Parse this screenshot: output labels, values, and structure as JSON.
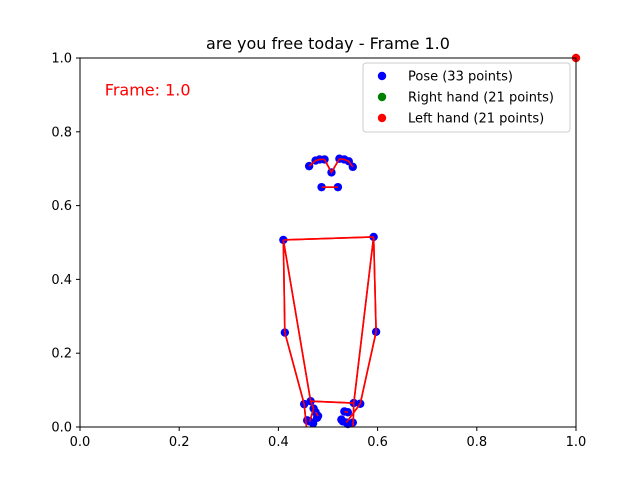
{
  "chart_data": {
    "type": "scatter",
    "title": "are you free today - Frame 1.0",
    "xlabel": "",
    "ylabel": "",
    "xlim": [
      0,
      1
    ],
    "ylim": [
      0,
      1
    ],
    "x_ticks": [
      "0.0",
      "0.2",
      "0.4",
      "0.6",
      "0.8",
      "1.0"
    ],
    "y_ticks": [
      "0.0",
      "0.2",
      "0.4",
      "0.6",
      "0.8",
      "1.0"
    ],
    "x_tick_values": [
      0,
      0.2,
      0.4,
      0.6,
      0.8,
      1.0
    ],
    "y_tick_values": [
      0,
      0.2,
      0.4,
      0.6,
      0.8,
      1.0
    ],
    "grid": false,
    "legend_position": "top-right",
    "annotation": {
      "text": "Frame: 1.0",
      "x": 0.05,
      "y": 0.915,
      "color": "#ff0000"
    },
    "series": [
      {
        "name": "Pose (33 points)",
        "color": "#0000ff",
        "points": [
          [
            0.507,
            0.69
          ],
          [
            0.493,
            0.725
          ],
          [
            0.483,
            0.725
          ],
          [
            0.475,
            0.722
          ],
          [
            0.523,
            0.727
          ],
          [
            0.533,
            0.725
          ],
          [
            0.542,
            0.72
          ],
          [
            0.462,
            0.707
          ],
          [
            0.55,
            0.705
          ],
          [
            0.487,
            0.65
          ],
          [
            0.52,
            0.65
          ],
          [
            0.41,
            0.507
          ],
          [
            0.592,
            0.515
          ],
          [
            0.413,
            0.256
          ],
          [
            0.597,
            0.258
          ],
          [
            0.465,
            0.07
          ],
          [
            0.552,
            0.065
          ],
          [
            0.452,
            0.062
          ],
          [
            0.565,
            0.063
          ],
          [
            0.471,
            0.05
          ],
          [
            0.533,
            0.042
          ],
          [
            0.475,
            0.04
          ],
          [
            0.527,
            0.02
          ],
          [
            0.48,
            0.03
          ],
          [
            0.54,
            0.04
          ],
          [
            0.463,
            0.015
          ],
          [
            0.537,
            0.012
          ],
          [
            0.478,
            0.025
          ],
          [
            0.53,
            0.015
          ],
          [
            0.47,
            0.01
          ],
          [
            0.54,
            0.008
          ],
          [
            0.458,
            0.018
          ],
          [
            0.55,
            0.012
          ]
        ]
      },
      {
        "name": "Right hand (21 points)",
        "color": "#008000",
        "points": []
      },
      {
        "name": "Left hand (21 points)",
        "color": "#ff0000",
        "points": [
          [
            1.0,
            1.0
          ]
        ]
      }
    ],
    "lines_color": "#ff0000",
    "lines": [
      [
        [
          0.493,
          0.725
        ],
        [
          0.483,
          0.725
        ],
        [
          0.475,
          0.722
        ],
        [
          0.462,
          0.707
        ]
      ],
      [
        [
          0.523,
          0.727
        ],
        [
          0.533,
          0.725
        ],
        [
          0.542,
          0.72
        ],
        [
          0.55,
          0.705
        ]
      ],
      [
        [
          0.493,
          0.725
        ],
        [
          0.507,
          0.69
        ],
        [
          0.523,
          0.727
        ]
      ],
      [
        [
          0.487,
          0.65
        ],
        [
          0.52,
          0.65
        ]
      ],
      [
        [
          0.41,
          0.507
        ],
        [
          0.592,
          0.515
        ]
      ],
      [
        [
          0.41,
          0.507
        ],
        [
          0.413,
          0.256
        ],
        [
          0.452,
          0.062
        ],
        [
          0.458,
          -0.02
        ]
      ],
      [
        [
          0.41,
          0.507
        ],
        [
          0.465,
          0.07
        ],
        [
          0.471,
          0.05
        ],
        [
          0.463,
          0.015
        ]
      ],
      [
        [
          0.592,
          0.515
        ],
        [
          0.597,
          0.258
        ],
        [
          0.565,
          0.063
        ],
        [
          0.537,
          0.012
        ]
      ],
      [
        [
          0.592,
          0.515
        ],
        [
          0.552,
          0.065
        ],
        [
          0.55,
          -0.02
        ]
      ],
      [
        [
          0.465,
          0.07
        ],
        [
          0.552,
          0.065
        ]
      ],
      [
        [
          0.475,
          0.04
        ],
        [
          0.48,
          0.03
        ]
      ],
      [
        [
          0.533,
          0.042
        ],
        [
          0.54,
          0.04
        ]
      ]
    ]
  }
}
